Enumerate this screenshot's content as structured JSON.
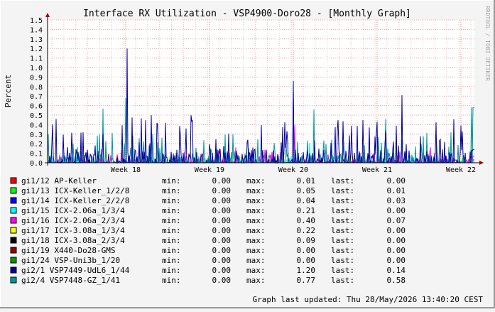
{
  "chart_data": {
    "type": "line",
    "title": "Interface RX Utilization - VSP4900-Doro28 - [Monthly Graph]",
    "ylabel": "Percent",
    "watermark": "RRDTOOL / TOBI OETIKER",
    "ylim": [
      0,
      1.5
    ],
    "y_ticks": [
      "0.0",
      "0.1",
      "0.2",
      "0.3",
      "0.4",
      "0.5",
      "0.6",
      "0.7",
      "0.8",
      "0.9",
      "1.0",
      "1.1",
      "1.2",
      "1.3",
      "1.4",
      "1.5"
    ],
    "x_ticks": [
      "Week 18",
      "Week 19",
      "Week 20",
      "Week 21",
      "Week 22"
    ],
    "grid": true,
    "legend_position": "bottom",
    "legend_labels": {
      "min": "min:",
      "max": "max:",
      "last": "last:"
    },
    "series": [
      {
        "name": "gi1/12 AP-Keller",
        "color": "#ff0000",
        "min": "0.00",
        "max": "0.01",
        "last": "0.00"
      },
      {
        "name": "gi1/13 ICX-Keller_1/2/8",
        "color": "#00ff00",
        "min": "0.00",
        "max": "0.05",
        "last": "0.01"
      },
      {
        "name": "gi1/14 ICX-Keller_2/2/8",
        "color": "#0000ff",
        "min": "0.00",
        "max": "0.04",
        "last": "0.03"
      },
      {
        "name": "gi1/15 ICX-2.06a_1/3/4",
        "color": "#00ffff",
        "min": "0.00",
        "max": "0.21",
        "last": "0.00"
      },
      {
        "name": "gi1/16 ICX-2.06a_2/3/4",
        "color": "#ff00ff",
        "min": "0.00",
        "max": "0.40",
        "last": "0.07"
      },
      {
        "name": "gi1/17 ICX-3.08a_1/3/4",
        "color": "#ffff00",
        "min": "0.00",
        "max": "0.22",
        "last": "0.00"
      },
      {
        "name": "gi1/18 ICX-3.08a_2/3/4",
        "color": "#000000",
        "min": "0.00",
        "max": "0.09",
        "last": "0.00"
      },
      {
        "name": "gi1/19 X440-Do28-GMS",
        "color": "#990000",
        "min": "0.00",
        "max": "0.00",
        "last": "0.00"
      },
      {
        "name": "gi1/24 VSP-Uni3b_1/20",
        "color": "#009900",
        "min": "0.00",
        "max": "0.00",
        "last": "0.00"
      },
      {
        "name": "gi2/1 VSP7449-UdL6_1/44",
        "color": "#000099",
        "min": "0.00",
        "max": "1.20",
        "last": "0.14"
      },
      {
        "name": "gi2/4 VSP7448-GZ_1/41",
        "color": "#009999",
        "min": "0.00",
        "max": "0.77",
        "last": "0.58"
      }
    ]
  },
  "footer": "Graph last updated: Thu 28/May/2026 13:40:20 CEST"
}
